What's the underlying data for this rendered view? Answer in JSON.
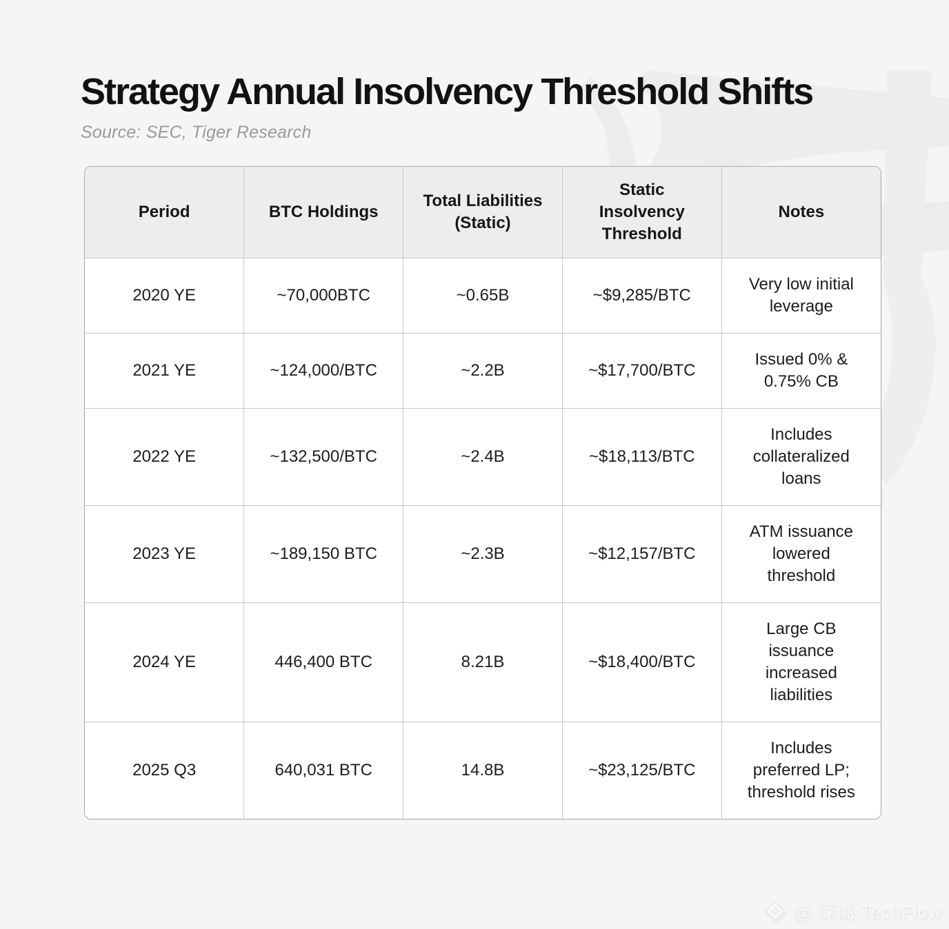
{
  "page": {
    "title": "Strategy Annual Insolvency Threshold Shifts",
    "source": "Source: SEC, Tiger Research"
  },
  "table": {
    "columns": [
      "Period",
      "BTC Holdings",
      "Total Liabilities\n(Static)",
      "Static\nInsolvency\nThreshold",
      "Notes"
    ],
    "rows": [
      [
        "2020 YE",
        "~70,000BTC",
        "~0.65B",
        "~$9,285/BTC",
        "Very low initial leverage"
      ],
      [
        "2021 YE",
        "~124,000/BTC",
        "~2.2B",
        "~$17,700/BTC",
        "Issued 0% & 0.75% CB"
      ],
      [
        "2022 YE",
        "~132,500/BTC",
        "~2.4B",
        "~$18,113/BTC",
        "Includes collateralized loans"
      ],
      [
        "2023 YE",
        "~189,150 BTC",
        "~2.3B",
        "~$12,157/BTC",
        "ATM issuance lowered threshold"
      ],
      [
        "2024 YE",
        "446,400 BTC",
        "8.21B",
        "~$18,400/BTC",
        "Large CB issuance increased liabilities"
      ],
      [
        "2025 Q3",
        "640,031 BTC",
        "14.8B",
        "~$23,125/BTC",
        "Includes preferred LP; threshold rises"
      ]
    ]
  },
  "chart_data": {
    "type": "table",
    "title": "Strategy Annual Insolvency Threshold Shifts",
    "subtitle": "Source: SEC, Tiger Research",
    "columns": [
      "Period",
      "BTC Holdings",
      "Total Liabilities (Static)",
      "Static Insolvency Threshold",
      "Notes"
    ],
    "rows": [
      [
        "2020 YE",
        "~70,000BTC",
        "~0.65B",
        "~$9,285/BTC",
        "Very low initial leverage"
      ],
      [
        "2021 YE",
        "~124,000/BTC",
        "~2.2B",
        "~$17,700/BTC",
        "Issued 0% & 0.75% CB"
      ],
      [
        "2022 YE",
        "~132,500/BTC",
        "~2.4B",
        "~$18,113/BTC",
        "Includes collateralized loans"
      ],
      [
        "2023 YE",
        "~189,150 BTC",
        "~2.3B",
        "~$12,157/BTC",
        "ATM issuance lowered threshold"
      ],
      [
        "2024 YE",
        "446,400 BTC",
        "8.21B",
        "~$18,400/BTC",
        "Large CB issuance increased liabilities"
      ],
      [
        "2025 Q3",
        "640,031 BTC",
        "14.8B",
        "~$23,125/BTC",
        "Includes preferred LP; threshold rises"
      ]
    ]
  },
  "watermark": {
    "icon": "gem-diamond-icon",
    "credit": "@ 深潮 TechFlow"
  },
  "colors": {
    "background": "#f5f5f6",
    "header_bg": "#ededed",
    "cell_bg": "#ffffff",
    "border": "#c6c6c6",
    "text": "#161616",
    "muted": "#9a9a9a"
  }
}
